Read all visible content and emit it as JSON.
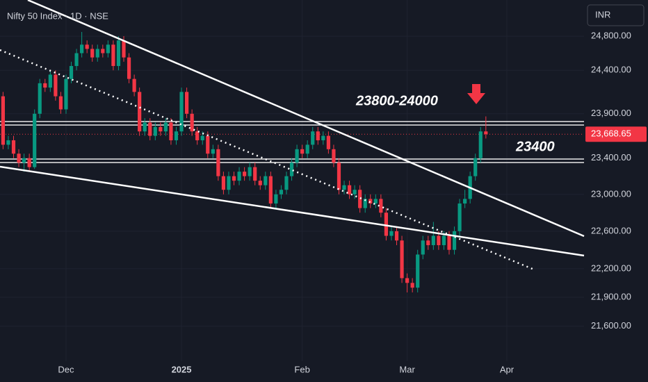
{
  "chart_data": {
    "type": "candlestick",
    "title": "Nifty 50 Index · 1D · NSE",
    "currency": "INR",
    "log_scale": true,
    "up_color": "#089981",
    "down_color": "#f23645",
    "ylim": [
      21243,
      25231
    ],
    "yticks": [
      {
        "value": 24800,
        "label": "24,800.00"
      },
      {
        "value": 24400,
        "label": "24,400.00"
      },
      {
        "value": 23900,
        "label": "23,900.00"
      },
      {
        "value": 23400,
        "label": "23,400.00"
      },
      {
        "value": 23000,
        "label": "23,000.00"
      },
      {
        "value": 22600,
        "label": "22,600.00"
      },
      {
        "value": 22200,
        "label": "22,200.00"
      },
      {
        "value": 21900,
        "label": "21,900.00"
      },
      {
        "value": 21600,
        "label": "21,600.00"
      }
    ],
    "last_price": {
      "value": 23668.65,
      "label": "23,668.65"
    },
    "annotations": [
      "23800-24000",
      "23400"
    ],
    "categories": [
      null,
      null,
      null,
      null,
      null,
      null,
      null,
      null,
      null,
      null,
      null,
      null,
      "Dec",
      null,
      null,
      null,
      null,
      null,
      null,
      null,
      null,
      null,
      null,
      null,
      null,
      null,
      null,
      null,
      null,
      null,
      null,
      null,
      null,
      null,
      "2025",
      null,
      null,
      null,
      null,
      null,
      null,
      null,
      null,
      null,
      null,
      null,
      null,
      null,
      null,
      null,
      null,
      null,
      null,
      null,
      null,
      null,
      null,
      "Feb",
      null,
      null,
      null,
      null,
      null,
      null,
      null,
      null,
      null,
      null,
      null,
      null,
      null,
      null,
      null,
      null,
      null,
      null,
      null,
      "Mar",
      null,
      null,
      null,
      null,
      null,
      null,
      null,
      null,
      null,
      null,
      null,
      null,
      null,
      null,
      null,
      null,
      null,
      null,
      "Apr",
      null,
      null,
      null,
      null,
      null,
      null,
      null,
      null,
      null,
      null,
      null,
      null,
      null,
      null
    ],
    "open": [
      24100,
      23550,
      23600,
      23450,
      23350,
      23400,
      23300,
      23900,
      24250,
      24200,
      24350,
      24100,
      23950,
      24300,
      24450,
      24600,
      24700,
      24650,
      24550,
      24650,
      24600,
      24700,
      24450,
      24750,
      24550,
      24300,
      24150,
      23700,
      23800,
      23650,
      23750,
      23700,
      23800,
      23600,
      23700,
      24150,
      23900,
      23700,
      23600,
      23650,
      23450,
      23500,
      23200,
      23050,
      23200,
      23150,
      23250,
      23200,
      23300,
      23150,
      23100,
      23200,
      22900,
      23000,
      23050,
      23200,
      23350,
      23500,
      23450,
      23550,
      23700,
      23600,
      23650,
      23500,
      23350,
      23050,
      23100,
      23000,
      23050,
      22850,
      22950,
      22900,
      22950,
      22800,
      22550,
      22600,
      22500,
      22100,
      22050,
      22000,
      22350,
      22500,
      22450,
      22550,
      22450,
      22550,
      22400,
      22600,
      22900,
      22950,
      23200,
      23400,
      23700,
      null,
      null,
      null,
      null,
      null,
      null,
      null,
      null,
      null,
      null,
      null,
      null,
      null,
      null,
      null,
      null,
      null,
      null
    ],
    "high": [
      24150,
      23650,
      23650,
      23500,
      23450,
      23450,
      23950,
      24300,
      24300,
      24400,
      24400,
      24150,
      24350,
      24500,
      24650,
      24850,
      24750,
      24700,
      24700,
      24700,
      24750,
      24750,
      24800,
      24800,
      24600,
      24350,
      24200,
      23850,
      23850,
      23800,
      23800,
      23850,
      23850,
      23750,
      24200,
      24200,
      23950,
      23750,
      23700,
      23700,
      23550,
      23550,
      23250,
      23250,
      23250,
      23300,
      23300,
      23350,
      23350,
      23200,
      23250,
      23250,
      23050,
      23100,
      23250,
      23400,
      23550,
      23550,
      23600,
      23750,
      23750,
      23700,
      23700,
      23550,
      23400,
      23150,
      23150,
      23100,
      23100,
      23000,
      23000,
      23000,
      23000,
      22850,
      22650,
      22650,
      22550,
      22150,
      22100,
      22400,
      22550,
      22550,
      22700,
      22600,
      22600,
      22600,
      22650,
      22950,
      23050,
      23250,
      23450,
      23750,
      23870,
      null,
      null,
      null,
      null,
      null,
      null,
      null,
      null,
      null,
      null,
      null,
      null,
      null,
      null,
      null,
      null,
      null,
      null
    ],
    "low": [
      23500,
      23500,
      23400,
      23300,
      23250,
      23250,
      23280,
      23850,
      24150,
      24150,
      24050,
      23900,
      23900,
      24250,
      24400,
      24550,
      24600,
      24500,
      24500,
      24550,
      24550,
      24400,
      24400,
      24500,
      24250,
      24100,
      23650,
      23650,
      23600,
      23600,
      23650,
      23650,
      23550,
      23550,
      23650,
      23850,
      23650,
      23550,
      23550,
      23400,
      23400,
      23150,
      23000,
      23000,
      23100,
      23100,
      23150,
      23150,
      23100,
      23050,
      23050,
      22850,
      22850,
      22950,
      23000,
      23150,
      23300,
      23400,
      23400,
      23500,
      23550,
      23550,
      23450,
      23300,
      23000,
      23000,
      22950,
      22950,
      22800,
      22800,
      22850,
      22850,
      22750,
      22500,
      22500,
      22450,
      22050,
      21950,
      21950,
      21950,
      22300,
      22400,
      22400,
      22400,
      22400,
      22350,
      22350,
      22550,
      22850,
      22900,
      23150,
      23350,
      23620,
      null,
      null,
      null,
      null,
      null,
      null,
      null,
      null,
      null,
      null,
      null,
      null,
      null,
      null,
      null,
      null,
      null,
      null
    ],
    "close": [
      23550,
      23600,
      23450,
      23350,
      23400,
      23300,
      23900,
      24250,
      24200,
      24350,
      24100,
      23950,
      24300,
      24450,
      24600,
      24700,
      24650,
      24550,
      24650,
      24600,
      24700,
      24450,
      24750,
      24550,
      24300,
      24150,
      23700,
      23800,
      23650,
      23750,
      23700,
      23800,
      23600,
      23700,
      24150,
      23900,
      23700,
      23600,
      23650,
      23450,
      23500,
      23200,
      23050,
      23200,
      23150,
      23250,
      23200,
      23300,
      23150,
      23100,
      23200,
      22900,
      23000,
      23050,
      23200,
      23350,
      23500,
      23450,
      23550,
      23700,
      23600,
      23650,
      23500,
      23350,
      23050,
      23100,
      23000,
      23050,
      22850,
      22950,
      22900,
      22950,
      22800,
      22550,
      22600,
      22500,
      22100,
      22050,
      22000,
      22350,
      22500,
      22450,
      22550,
      22450,
      22550,
      22400,
      22600,
      22900,
      22950,
      23200,
      23400,
      23700,
      23668.65,
      null,
      null,
      null,
      null,
      null,
      null,
      null,
      null,
      null,
      null,
      null,
      null,
      null,
      null,
      null,
      null,
      null,
      null
    ]
  }
}
